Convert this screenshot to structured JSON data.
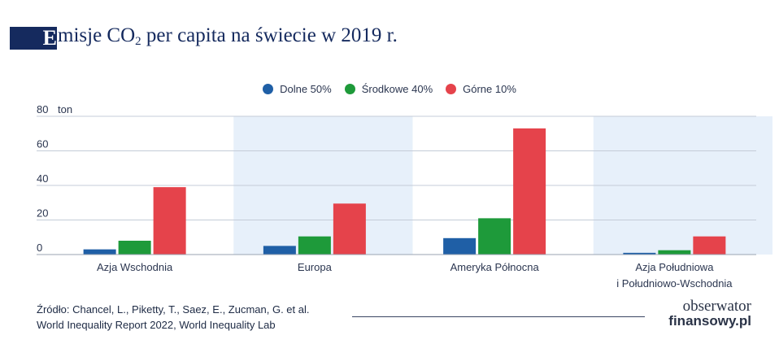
{
  "header": {
    "title_initial": "E",
    "title_pre": "misje CO",
    "title_sub": "2",
    "title_post": " per capita na świecie w 2019 r."
  },
  "chart_data": {
    "type": "bar",
    "title": "Emisje CO2 per capita na świecie w 2019 r.",
    "ylabel": "",
    "y_unit": "ton",
    "ylim": [
      0,
      80
    ],
    "yticks": [
      0,
      20,
      40,
      60,
      80
    ],
    "grid": true,
    "legend_position": "top-center",
    "categories": [
      "Azja Wschodnia",
      "Europa",
      "Ameryka Północna",
      "Azja Południowa i Południowo-Wschodnia"
    ],
    "category_lines": [
      [
        "Azja Wschodnia"
      ],
      [
        "Europa"
      ],
      [
        "Ameryka Północna"
      ],
      [
        "Azja Południowa",
        "i Południowo-Wschodnia"
      ]
    ],
    "series": [
      {
        "name": "Dolne 50%",
        "color": "#1f5fa6",
        "values": [
          3,
          5,
          9.5,
          1
        ]
      },
      {
        "name": "Środkowe 40%",
        "color": "#1e9a3a",
        "values": [
          8,
          10.5,
          21,
          2.5
        ]
      },
      {
        "name": "Górne 10%",
        "color": "#e5434b",
        "values": [
          39,
          29.5,
          73,
          10.5
        ]
      }
    ],
    "shaded_category_background": "#e7f0fa"
  },
  "footer": {
    "source_line1": "Źródło: Chancel, L., Piketty, T., Saez, E., Zucman, G. et al.",
    "source_line2": "World Inequality Report 2022, World Inequality Lab",
    "logo_top": "obserwator",
    "logo_bottom": "finansowy.pl"
  }
}
